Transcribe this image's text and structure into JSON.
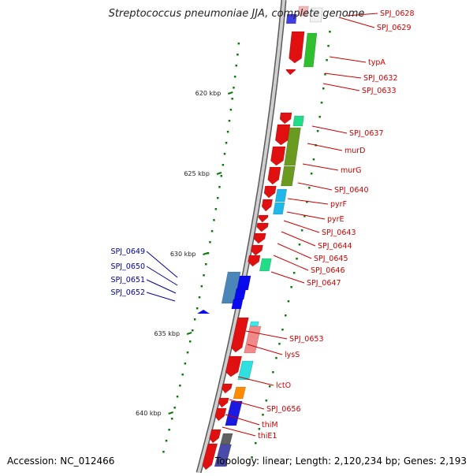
{
  "title": "Streptococcus pneumoniae JJA, complete genome",
  "footer": {
    "accession": "Accession: NC_012466",
    "topology": "Topology: linear; Length: 2,120,234 bp; Genes: 2,193"
  },
  "colors": {
    "forward_label": "#cc0000",
    "reverse_label": "#000099",
    "backbone": "#8a8a8a",
    "tick": "#0a7a0a"
  },
  "scale_ticks": [
    "620 kbp",
    "625 kbp",
    "630 kbp",
    "635 kbp",
    "640 kbp"
  ],
  "gene_labels": [
    {
      "text": "SPJ_0628",
      "strand": "forward"
    },
    {
      "text": "SPJ_0629",
      "strand": "forward"
    },
    {
      "text": "typA",
      "strand": "forward"
    },
    {
      "text": "SPJ_0632",
      "strand": "forward"
    },
    {
      "text": "SPJ_0633",
      "strand": "forward"
    },
    {
      "text": "SPJ_0637",
      "strand": "forward"
    },
    {
      "text": "murD",
      "strand": "forward"
    },
    {
      "text": "murG",
      "strand": "forward"
    },
    {
      "text": "SPJ_0640",
      "strand": "forward"
    },
    {
      "text": "pyrF",
      "strand": "forward"
    },
    {
      "text": "pyrE",
      "strand": "forward"
    },
    {
      "text": "SPJ_0643",
      "strand": "forward"
    },
    {
      "text": "SPJ_0644",
      "strand": "forward"
    },
    {
      "text": "SPJ_0645",
      "strand": "forward"
    },
    {
      "text": "SPJ_0646",
      "strand": "forward"
    },
    {
      "text": "SPJ_0647",
      "strand": "forward"
    },
    {
      "text": "SPJ_0649",
      "strand": "reverse"
    },
    {
      "text": "SPJ_0650",
      "strand": "reverse"
    },
    {
      "text": "SPJ_0651",
      "strand": "reverse"
    },
    {
      "text": "SPJ_0652",
      "strand": "reverse"
    },
    {
      "text": "SPJ_0653",
      "strand": "forward"
    },
    {
      "text": "lysS",
      "strand": "forward"
    },
    {
      "text": "lctO",
      "strand": "forward"
    },
    {
      "text": "SPJ_0656",
      "strand": "forward"
    },
    {
      "text": "thiM",
      "strand": "forward"
    },
    {
      "text": "thiE1",
      "strand": "forward"
    }
  ]
}
